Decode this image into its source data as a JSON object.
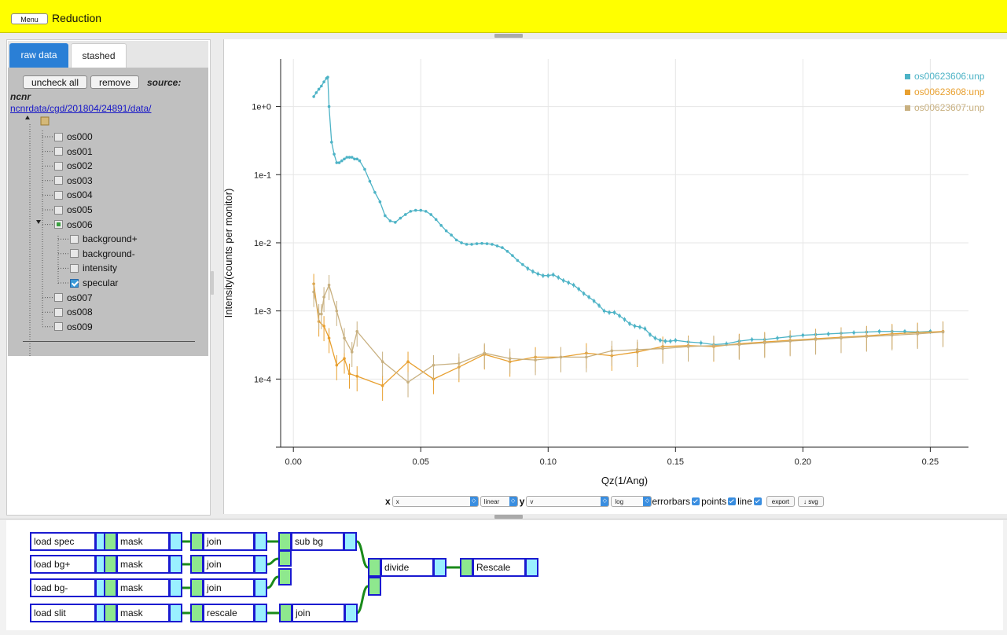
{
  "header": {
    "menu_label": "Menu",
    "title": "Reduction"
  },
  "colors": {
    "header_bg": "#ffff00",
    "series_blue": "#4db3c6",
    "series_orange": "#e8a030",
    "series_tan": "#c8b080",
    "module_border": "#1a1ad0",
    "input_terminal": "#8ee88e",
    "output_terminal": "#9af0ff",
    "wire": "#1a8a1a"
  },
  "left": {
    "tabs": [
      {
        "label": "raw data",
        "active": true
      },
      {
        "label": "stashed",
        "active": false
      }
    ],
    "uncheck_all": "uncheck all",
    "remove": "remove",
    "source_label": "source:",
    "source_name": "ncnr",
    "source_path": "ncnrdata/cgd/201804/24891/data/",
    "tree": [
      {
        "label": "os000",
        "state": "unchecked"
      },
      {
        "label": "os001",
        "state": "unchecked"
      },
      {
        "label": "os002",
        "state": "unchecked"
      },
      {
        "label": "os003",
        "state": "unchecked"
      },
      {
        "label": "os004",
        "state": "unchecked"
      },
      {
        "label": "os005",
        "state": "unchecked"
      },
      {
        "label": "os006",
        "state": "partial",
        "children": [
          {
            "label": "background+",
            "state": "unchecked"
          },
          {
            "label": "background-",
            "state": "unchecked"
          },
          {
            "label": "intensity",
            "state": "unchecked"
          },
          {
            "label": "specular",
            "state": "checked"
          }
        ]
      },
      {
        "label": "os007",
        "state": "unchecked"
      },
      {
        "label": "os008",
        "state": "unchecked"
      },
      {
        "label": "os009",
        "state": "unchecked"
      }
    ]
  },
  "controls": {
    "x_label": "x",
    "x_value": "x",
    "x_scale": "linear",
    "y_label": "y",
    "y_value": "v",
    "y_scale": "log",
    "errorbars_label": "errorbars",
    "points_label": "points",
    "line_label": "line",
    "export_label": "export",
    "svg_label": "↓ svg"
  },
  "chart_data": {
    "type": "line",
    "xlabel": "Qz(1/Ang)",
    "ylabel": "Intensity(counts per monitor)",
    "xlim": [
      -0.005,
      0.265
    ],
    "ylim": [
      1e-05,
      5
    ],
    "yscale": "log",
    "grid": true,
    "legend_position": "top-right",
    "x_ticks": [
      "0.00",
      "0.05",
      "0.10",
      "0.15",
      "0.20",
      "0.25"
    ],
    "y_ticks": [
      "1e-4",
      "1e-3",
      "1e-2",
      "1e-1",
      "1e+0"
    ],
    "series": [
      {
        "name": "os00623606:unp",
        "color": "#4db3c6",
        "x": [
          0.008,
          0.009,
          0.01,
          0.011,
          0.012,
          0.013,
          0.0135,
          0.014,
          0.015,
          0.016,
          0.017,
          0.018,
          0.019,
          0.02,
          0.021,
          0.022,
          0.023,
          0.024,
          0.025,
          0.026,
          0.028,
          0.03,
          0.032,
          0.034,
          0.036,
          0.038,
          0.04,
          0.042,
          0.044,
          0.046,
          0.048,
          0.05,
          0.052,
          0.054,
          0.056,
          0.058,
          0.06,
          0.062,
          0.064,
          0.066,
          0.068,
          0.07,
          0.072,
          0.074,
          0.076,
          0.078,
          0.08,
          0.082,
          0.084,
          0.086,
          0.088,
          0.09,
          0.092,
          0.094,
          0.096,
          0.098,
          0.1,
          0.102,
          0.104,
          0.106,
          0.108,
          0.11,
          0.112,
          0.114,
          0.116,
          0.118,
          0.12,
          0.122,
          0.124,
          0.126,
          0.128,
          0.13,
          0.132,
          0.134,
          0.136,
          0.138,
          0.14,
          0.142,
          0.144,
          0.146,
          0.148,
          0.15,
          0.155,
          0.16,
          0.165,
          0.17,
          0.175,
          0.18,
          0.185,
          0.19,
          0.195,
          0.2,
          0.205,
          0.21,
          0.215,
          0.22,
          0.225,
          0.23,
          0.235,
          0.24,
          0.245,
          0.25
        ],
        "y": [
          1.4,
          1.6,
          1.8,
          2.0,
          2.3,
          2.6,
          2.7,
          1.0,
          0.3,
          0.2,
          0.15,
          0.15,
          0.16,
          0.17,
          0.18,
          0.18,
          0.18,
          0.17,
          0.17,
          0.16,
          0.12,
          0.08,
          0.055,
          0.04,
          0.025,
          0.021,
          0.02,
          0.023,
          0.026,
          0.029,
          0.03,
          0.03,
          0.029,
          0.026,
          0.022,
          0.018,
          0.015,
          0.013,
          0.011,
          0.01,
          0.0095,
          0.0095,
          0.0097,
          0.0098,
          0.0097,
          0.0095,
          0.009,
          0.0085,
          0.0075,
          0.0065,
          0.0055,
          0.0048,
          0.0042,
          0.0038,
          0.0035,
          0.0033,
          0.0033,
          0.0034,
          0.0031,
          0.0028,
          0.0026,
          0.0024,
          0.0021,
          0.0018,
          0.0016,
          0.0014,
          0.0012,
          0.001,
          0.00095,
          0.00095,
          0.00085,
          0.00075,
          0.00065,
          0.0006,
          0.00058,
          0.00055,
          0.00045,
          0.0004,
          0.00037,
          0.00036,
          0.00036,
          0.00037,
          0.00035,
          0.00034,
          0.00032,
          0.00033,
          0.00036,
          0.00038,
          0.00038,
          0.0004,
          0.00042,
          0.00044,
          0.00045,
          0.00046,
          0.00047,
          0.00048,
          0.00049,
          0.0005,
          0.0005,
          0.0005,
          0.00049,
          0.0005
        ]
      },
      {
        "name": "os00623608:unp",
        "color": "#e8a030",
        "x": [
          0.008,
          0.01,
          0.012,
          0.014,
          0.017,
          0.02,
          0.022,
          0.025,
          0.035,
          0.045,
          0.055,
          0.065,
          0.075,
          0.085,
          0.095,
          0.105,
          0.115,
          0.125,
          0.135,
          0.145,
          0.155,
          0.165,
          0.175,
          0.185,
          0.195,
          0.205,
          0.215,
          0.225,
          0.235,
          0.245,
          0.255
        ],
        "y": [
          0.0025,
          0.0007,
          0.0006,
          0.0004,
          0.00016,
          0.0002,
          0.00012,
          0.00011,
          8e-05,
          0.00018,
          0.0001,
          0.00015,
          0.00023,
          0.00018,
          0.00021,
          0.00021,
          0.00024,
          0.00022,
          0.00025,
          0.0003,
          0.00031,
          0.0003,
          0.00033,
          0.00035,
          0.00037,
          0.00039,
          0.00041,
          0.00043,
          0.00046,
          0.00048,
          0.0005
        ]
      },
      {
        "name": "os00623607:unp",
        "color": "#c8b080",
        "x": [
          0.008,
          0.01,
          0.011,
          0.012,
          0.014,
          0.017,
          0.02,
          0.023,
          0.025,
          0.035,
          0.045,
          0.055,
          0.065,
          0.075,
          0.085,
          0.095,
          0.105,
          0.115,
          0.125,
          0.135,
          0.145,
          0.155,
          0.165,
          0.175,
          0.185,
          0.195,
          0.205,
          0.215,
          0.225,
          0.235,
          0.245,
          0.255
        ],
        "y": [
          0.0019,
          0.0009,
          0.0009,
          0.0016,
          0.0024,
          0.001,
          0.0004,
          0.00025,
          0.0005,
          0.00018,
          9e-05,
          0.00016,
          0.00017,
          0.00024,
          0.0002,
          0.00019,
          0.00021,
          0.00021,
          0.00026,
          0.00027,
          0.00028,
          0.0003,
          0.00031,
          0.00032,
          0.00034,
          0.00036,
          0.00038,
          0.0004,
          0.00042,
          0.00044,
          0.00046,
          0.00049
        ]
      }
    ]
  },
  "pipeline": {
    "modules": [
      {
        "id": "load_spec",
        "label": "load spec"
      },
      {
        "id": "mask1",
        "label": "mask"
      },
      {
        "id": "join1",
        "label": "join"
      },
      {
        "id": "sub_bg",
        "label": "sub bg"
      },
      {
        "id": "load_bgp",
        "label": "load bg+"
      },
      {
        "id": "mask2",
        "label": "mask"
      },
      {
        "id": "join2",
        "label": "join"
      },
      {
        "id": "load_bgm",
        "label": "load bg-"
      },
      {
        "id": "mask3",
        "label": "mask"
      },
      {
        "id": "join3",
        "label": "join"
      },
      {
        "id": "load_slit",
        "label": "load slit"
      },
      {
        "id": "mask4",
        "label": "mask"
      },
      {
        "id": "rescale1",
        "label": "rescale"
      },
      {
        "id": "join4",
        "label": "join"
      },
      {
        "id": "divide",
        "label": "divide"
      },
      {
        "id": "rescale2",
        "label": "Rescale"
      }
    ]
  }
}
